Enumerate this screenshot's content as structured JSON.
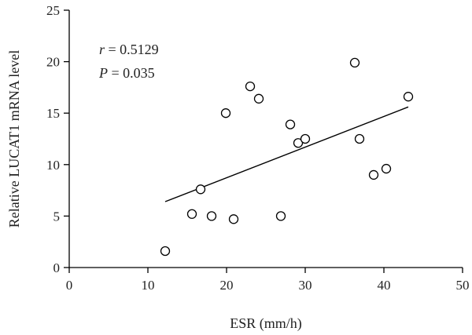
{
  "chart_data": {
    "type": "scatter",
    "xlabel": "ESR (mm/h)",
    "ylabel": "Relative LUCAT1 mRNA level",
    "xlim": [
      0,
      50
    ],
    "ylim": [
      0,
      25
    ],
    "x_ticks": [
      0,
      10,
      20,
      30,
      40,
      50
    ],
    "y_ticks": [
      0,
      5,
      10,
      15,
      20,
      25
    ],
    "grid": false,
    "points": [
      {
        "x": 12.2,
        "y": 1.6
      },
      {
        "x": 15.6,
        "y": 5.2
      },
      {
        "x": 16.7,
        "y": 7.6
      },
      {
        "x": 18.1,
        "y": 5.0
      },
      {
        "x": 19.9,
        "y": 15.0
      },
      {
        "x": 20.9,
        "y": 4.7
      },
      {
        "x": 23.0,
        "y": 17.6
      },
      {
        "x": 24.1,
        "y": 16.4
      },
      {
        "x": 26.9,
        "y": 5.0
      },
      {
        "x": 28.1,
        "y": 13.9
      },
      {
        "x": 29.1,
        "y": 12.1
      },
      {
        "x": 30.0,
        "y": 12.5
      },
      {
        "x": 36.3,
        "y": 19.9
      },
      {
        "x": 36.9,
        "y": 12.5
      },
      {
        "x": 38.7,
        "y": 9.0
      },
      {
        "x": 40.3,
        "y": 9.6
      },
      {
        "x": 43.1,
        "y": 16.6
      }
    ],
    "regression_line": {
      "x": [
        12.2,
        43.1
      ],
      "y": [
        6.4,
        15.6
      ]
    },
    "annotation": {
      "r_symbol": "r",
      "r_value": " = 0.5129",
      "p_symbol": "P",
      "p_value": " = 0.035"
    }
  }
}
